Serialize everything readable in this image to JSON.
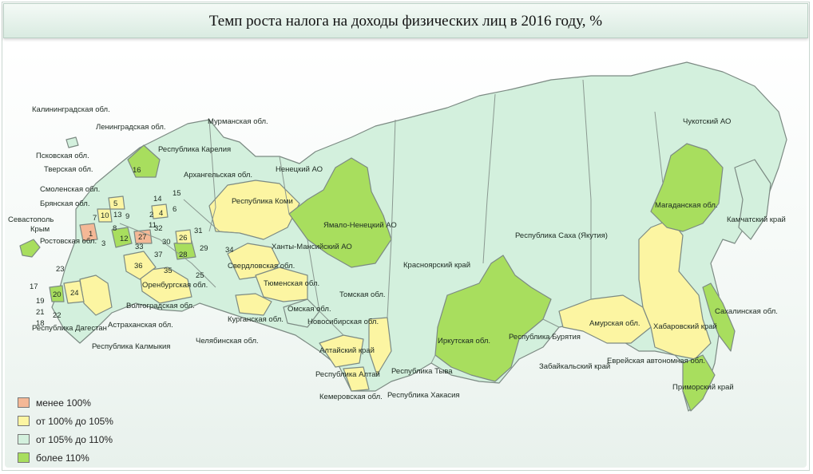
{
  "title": "Темп роста налога на доходы физических лиц в 2016 году, %",
  "colors": {
    "less100": "#f4b896",
    "y100_105": "#fcf5a2",
    "y105_110": "#d3f0dd",
    "more110": "#a8de5e",
    "border": "#7c8a83"
  },
  "legend": [
    {
      "label": "менее 100%",
      "color": "#f4b896"
    },
    {
      "label": "от 100% до 105%",
      "color": "#fcf5a2"
    },
    {
      "label": "от 105% до 110%",
      "color": "#d3f0dd"
    },
    {
      "label": "более 110%",
      "color": "#a8de5e"
    }
  ],
  "labels": {
    "kaliningrad": "Калининградская обл.",
    "leningrad": "Ленинградская обл.",
    "murmansk": "Мурманская обл.",
    "pskov": "Псковская обл.",
    "karelia": "Республика Карелия",
    "tver": "Тверская обл.",
    "arkhangelsk": "Архангельская обл.",
    "nenets": "Ненецкий АО",
    "smolensk": "Смоленская обл.",
    "komi": "Республика Коми",
    "bryansk": "Брянская обл.",
    "sevastopol": "Севастополь",
    "crimea": "Крым",
    "rostov": "Ростовская обл.",
    "yamal": "Ямало-Ненецкий АО",
    "khanty": "Ханты-Мансийский АО",
    "sverdlovsk": "Свердловская обл.",
    "tyumen": "Тюменская обл.",
    "orenburg": "Оренбургская обл.",
    "volgograd": "Волгоградская обл.",
    "astrakhan": "Астраханская обл.",
    "kalmykia": "Республика Калмыкия",
    "dagestan": "Республика Дагестан",
    "kurgan": "Курганская обл.",
    "chelyabinsk": "Челябинская обл.",
    "omsk": "Омская обл.",
    "tomsk": "Томская обл.",
    "novosibirsk": "Новосибирская обл.",
    "altai_krai": "Алтайский край",
    "altai_rep": "Республика Алтай",
    "kemerovo": "Кемеровская обл.",
    "tyva": "Республика Тыва",
    "khakasia": "Республика Хакасия",
    "krasnoyarsk": "Красноярский край",
    "irkutsk": "Иркутская обл.",
    "buryatia": "Республика Бурятия",
    "zabaikal": "Забайкальский край",
    "yakutia": "Республика Саха (Якутия)",
    "amur": "Амурская обл.",
    "jewish": "Еврейская автономная обл.",
    "khabarovsk": "Хабаровский край",
    "primorsky": "Приморский край",
    "sakhalin": "Сахалинская обл.",
    "magadan": "Магаданская обл.",
    "kamchatka": "Камчатский край",
    "chukotka": "Чукотский АО"
  },
  "numbers": [
    "1",
    "2",
    "3",
    "4",
    "5",
    "6",
    "7",
    "8",
    "9",
    "10",
    "11",
    "12",
    "13",
    "14",
    "15",
    "16",
    "17",
    "18",
    "19",
    "20",
    "21",
    "22",
    "23",
    "24",
    "25",
    "26",
    "27",
    "28",
    "29",
    "30",
    "31",
    "32",
    "33",
    "34",
    "35",
    "36",
    "37"
  ]
}
